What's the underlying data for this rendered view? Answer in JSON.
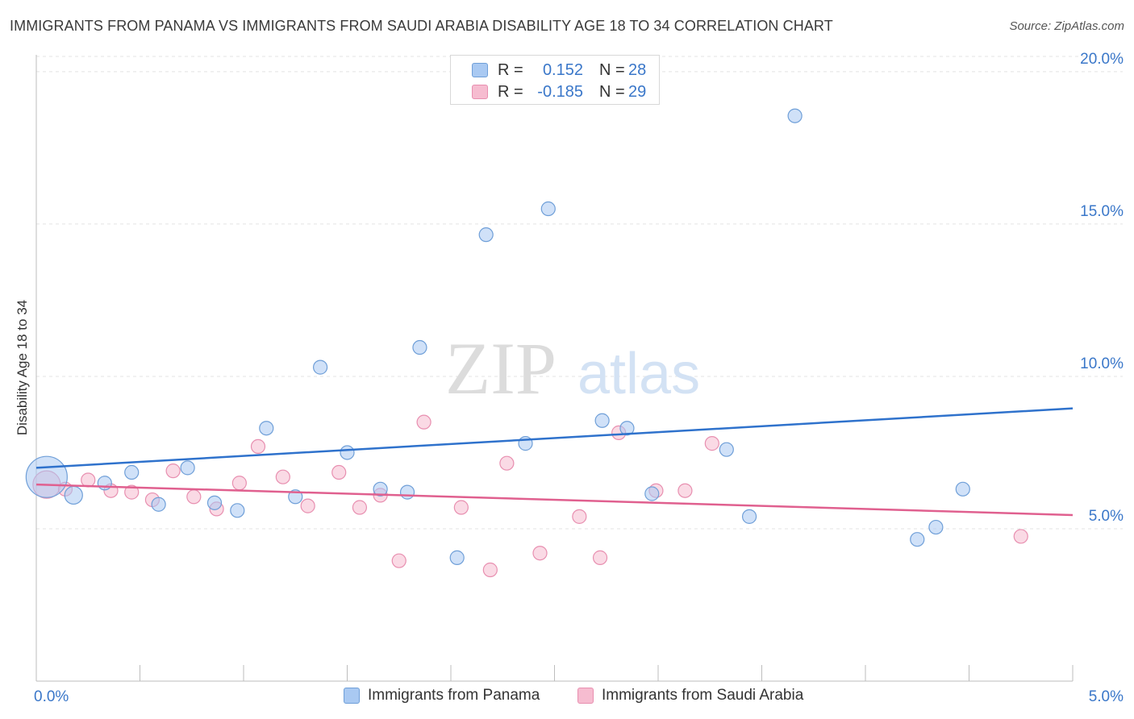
{
  "title": "IMMIGRANTS FROM PANAMA VS IMMIGRANTS FROM SAUDI ARABIA DISABILITY AGE 18 TO 34 CORRELATION CHART",
  "source": "Source: ZipAtlas.com",
  "watermark": {
    "zip": "ZIP",
    "atlas": "atlas"
  },
  "legend": {
    "rows": [
      {
        "r_label": "R =",
        "r_value": "0.152",
        "n_label": "N =",
        "n_value": "28"
      },
      {
        "r_label": "R =",
        "r_value": "-0.185",
        "n_label": "N =",
        "n_value": "29"
      }
    ]
  },
  "colors": {
    "panama_fill": "#a9c9f2",
    "panama_stroke": "#6f9fd8",
    "panama_line": "#2f72cc",
    "saudi_fill": "#f6bcd0",
    "saudi_stroke": "#e88fb0",
    "saudi_line": "#e0608f",
    "tick_label": "#3a77c9",
    "grid": "#e3e3e3"
  },
  "chart_data": {
    "type": "scatter",
    "title": "IMMIGRANTS FROM PANAMA VS IMMIGRANTS FROM SAUDI ARABIA DISABILITY AGE 18 TO 34 CORRELATION CHART",
    "xlabel": "",
    "ylabel": "Disability Age 18 to 34",
    "xlim": [
      0,
      5
    ],
    "ylim": [
      0,
      20.5
    ],
    "x_tick_labels": [
      "0.0%",
      "5.0%"
    ],
    "y_ticks": [
      5,
      10,
      15,
      20
    ],
    "y_tick_labels": [
      "5.0%",
      "10.0%",
      "15.0%",
      "20.0%"
    ],
    "grid": true,
    "series": [
      {
        "name": "Immigrants from Panama",
        "r": 0.152,
        "n": 28,
        "trend": [
          [
            0,
            7.0
          ],
          [
            5,
            8.95
          ]
        ],
        "points": [
          [
            0.05,
            6.7,
            3
          ],
          [
            0.18,
            6.1,
            1.3
          ],
          [
            0.33,
            6.5,
            1
          ],
          [
            0.46,
            6.85,
            1
          ],
          [
            0.59,
            5.8,
            1
          ],
          [
            0.73,
            7.0,
            1
          ],
          [
            0.86,
            5.85,
            1
          ],
          [
            0.97,
            5.6,
            1
          ],
          [
            1.11,
            8.3,
            1
          ],
          [
            1.25,
            6.05,
            1
          ],
          [
            1.37,
            10.3,
            1
          ],
          [
            1.5,
            7.5,
            1
          ],
          [
            1.66,
            6.3,
            1
          ],
          [
            1.79,
            6.2,
            1
          ],
          [
            1.85,
            10.95,
            1
          ],
          [
            2.03,
            4.05,
            1
          ],
          [
            2.17,
            14.65,
            1
          ],
          [
            2.36,
            7.8,
            1
          ],
          [
            2.47,
            15.5,
            1
          ],
          [
            2.73,
            8.55,
            1
          ],
          [
            2.85,
            8.3,
            1
          ],
          [
            2.97,
            6.15,
            1
          ],
          [
            3.33,
            7.6,
            1
          ],
          [
            3.44,
            5.4,
            1
          ],
          [
            3.66,
            18.55,
            1
          ],
          [
            4.25,
            4.65,
            1
          ],
          [
            4.34,
            5.05,
            1
          ],
          [
            4.47,
            6.3,
            1
          ]
        ]
      },
      {
        "name": "Immigrants from Saudi Arabia",
        "r": -0.185,
        "n": 29,
        "trend": [
          [
            0,
            6.45
          ],
          [
            5,
            5.45
          ]
        ],
        "points": [
          [
            0.05,
            6.45,
            2
          ],
          [
            0.14,
            6.3,
            1
          ],
          [
            0.25,
            6.6,
            1
          ],
          [
            0.36,
            6.25,
            1
          ],
          [
            0.46,
            6.2,
            1
          ],
          [
            0.56,
            5.95,
            1
          ],
          [
            0.66,
            6.9,
            1
          ],
          [
            0.76,
            6.05,
            1
          ],
          [
            0.87,
            5.65,
            1
          ],
          [
            0.98,
            6.5,
            1
          ],
          [
            1.07,
            7.7,
            1
          ],
          [
            1.19,
            6.7,
            1
          ],
          [
            1.31,
            5.75,
            1
          ],
          [
            1.46,
            6.85,
            1
          ],
          [
            1.56,
            5.7,
            1
          ],
          [
            1.66,
            6.1,
            1
          ],
          [
            1.75,
            3.95,
            1
          ],
          [
            1.87,
            8.5,
            1
          ],
          [
            2.05,
            5.7,
            1
          ],
          [
            2.19,
            3.65,
            1
          ],
          [
            2.27,
            7.15,
            1
          ],
          [
            2.43,
            4.2,
            1
          ],
          [
            2.62,
            5.4,
            1
          ],
          [
            2.72,
            4.05,
            1
          ],
          [
            2.81,
            8.15,
            1
          ],
          [
            2.99,
            6.25,
            1
          ],
          [
            3.13,
            6.25,
            1
          ],
          [
            3.26,
            7.8,
            1
          ],
          [
            4.75,
            4.75,
            1
          ]
        ]
      }
    ]
  }
}
